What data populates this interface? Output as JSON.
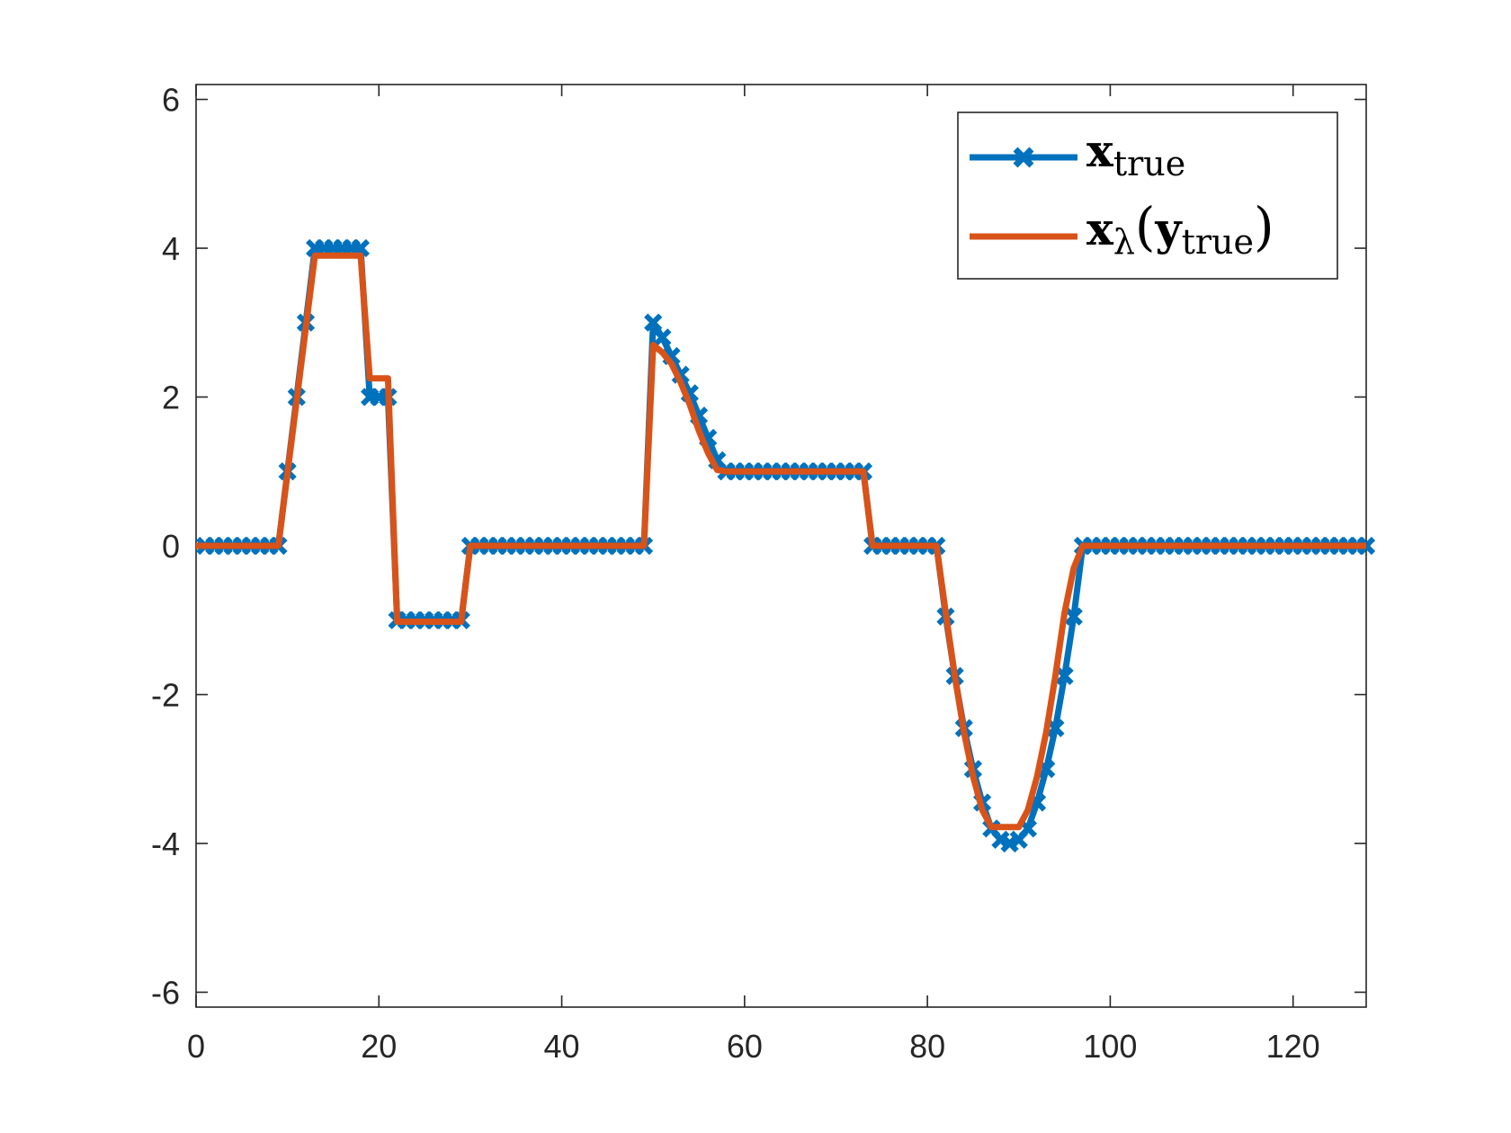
{
  "chart_data": {
    "type": "line",
    "xlim": [
      0,
      128
    ],
    "ylim": [
      -6.2,
      6.2
    ],
    "x_ticks": [
      0,
      20,
      40,
      60,
      80,
      100,
      120
    ],
    "y_ticks": [
      6,
      4,
      2,
      0,
      -2,
      -4,
      -6
    ],
    "x_tick_labels": [
      "0",
      "20",
      "40",
      "60",
      "80",
      "100",
      "120"
    ],
    "y_tick_labels": [
      "6",
      "4",
      "2",
      "0",
      "-2",
      "-4",
      "-6"
    ],
    "grid": false,
    "legend_position": "top-right",
    "series": [
      {
        "name": "x_true",
        "legend": {
          "base": "x",
          "sub": "true"
        },
        "color": "#0072BD",
        "marker": "x",
        "x": [
          1,
          2,
          3,
          4,
          5,
          6,
          7,
          8,
          9,
          10,
          11,
          12,
          13,
          14,
          15,
          16,
          17,
          18,
          19,
          20,
          21,
          22,
          23,
          24,
          25,
          26,
          27,
          28,
          29,
          30,
          31,
          32,
          33,
          34,
          35,
          36,
          37,
          38,
          39,
          40,
          41,
          42,
          43,
          44,
          45,
          46,
          47,
          48,
          49,
          50,
          51,
          52,
          53,
          54,
          55,
          56,
          57,
          58,
          59,
          60,
          61,
          62,
          63,
          64,
          65,
          66,
          67,
          68,
          69,
          70,
          71,
          72,
          73,
          74,
          75,
          76,
          77,
          78,
          79,
          80,
          81,
          82,
          83,
          84,
          85,
          86,
          87,
          88,
          89,
          90,
          91,
          92,
          93,
          94,
          95,
          96,
          97,
          98,
          99,
          100,
          101,
          102,
          103,
          104,
          105,
          106,
          107,
          108,
          109,
          110,
          111,
          112,
          113,
          114,
          115,
          116,
          117,
          118,
          119,
          120,
          121,
          122,
          123,
          124,
          125,
          126,
          127,
          128
        ],
        "y": [
          0,
          0,
          0,
          0,
          0,
          0,
          0,
          0,
          0,
          1,
          2,
          3,
          4,
          4,
          4,
          4,
          4,
          4,
          2,
          2,
          2,
          -1,
          -1,
          -1,
          -1,
          -1,
          -1,
          -1,
          -1,
          0,
          0,
          0,
          0,
          0,
          0,
          0,
          0,
          0,
          0,
          0,
          0,
          0,
          0,
          0,
          0,
          0,
          0,
          0,
          0,
          3,
          2.8,
          2.55,
          2.3,
          2.05,
          1.75,
          1.45,
          1.15,
          1,
          1,
          1,
          1,
          1,
          1,
          1,
          1,
          1,
          1,
          1,
          1,
          1,
          1,
          1,
          1,
          0,
          0,
          0,
          0,
          0,
          0,
          0,
          0,
          -0.95,
          -1.75,
          -2.45,
          -3.0,
          -3.45,
          -3.8,
          -3.95,
          -4,
          -3.95,
          -3.8,
          -3.45,
          -3.0,
          -2.45,
          -1.75,
          -0.95,
          0,
          0,
          0,
          0,
          0,
          0,
          0,
          0,
          0,
          0,
          0,
          0,
          0,
          0,
          0,
          0,
          0,
          0,
          0,
          0,
          0,
          0,
          0,
          0,
          0,
          0,
          0,
          0,
          0,
          0,
          0,
          0
        ]
      },
      {
        "name": "x_lambda(y_true)",
        "legend": {
          "base": "x",
          "sub": "λ",
          "arg_base": "y",
          "arg_sub": "true"
        },
        "color": "#D95319",
        "marker": "none",
        "x": [
          0,
          9,
          13,
          18,
          19,
          21,
          22,
          29,
          30,
          49,
          50,
          51,
          52,
          53,
          54,
          55,
          56,
          57,
          58,
          73,
          74,
          81,
          82,
          83,
          84,
          85,
          86,
          87,
          88,
          89,
          90,
          91,
          92,
          93,
          94,
          95,
          96,
          97,
          128
        ],
        "y": [
          0,
          0,
          3.9,
          3.9,
          2.25,
          2.25,
          -1.02,
          -1.02,
          0,
          0,
          2.7,
          2.6,
          2.45,
          2.2,
          1.9,
          1.55,
          1.25,
          1.02,
          1,
          1,
          0,
          0,
          -0.9,
          -1.75,
          -2.5,
          -3.1,
          -3.55,
          -3.78,
          -3.78,
          -3.78,
          -3.78,
          -3.55,
          -3.1,
          -2.5,
          -1.75,
          -0.9,
          -0.3,
          0,
          0
        ]
      }
    ]
  }
}
